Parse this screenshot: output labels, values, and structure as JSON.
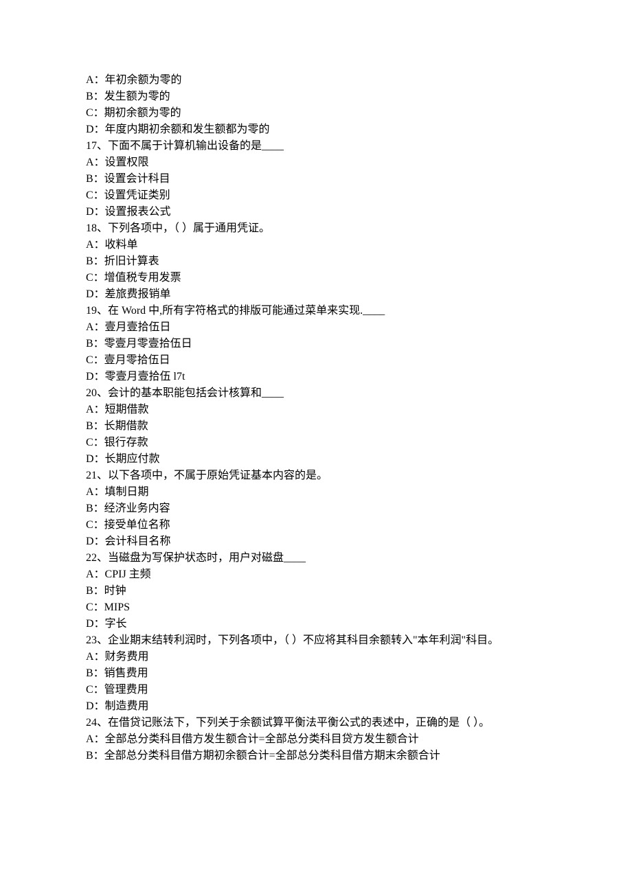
{
  "q16": {
    "A": "A：年初余额为零的",
    "B": "B：发生额为零的",
    "C": "C：期初余额为零的",
    "D": "D：年度内期初余额和发生额都为零的"
  },
  "q17": {
    "question": "17、下面不属于计算机输出设备的是____",
    "A": "A：设置权限",
    "B": "B：设置会计科目",
    "C": "C：设置凭证类别",
    "D": "D：设置报表公式"
  },
  "q18": {
    "question": "18、下列各项中，（   ）属于通用凭证。",
    "A": "A：收料单",
    "B": "B：折旧计算表",
    "C": "C：增值税专用发票",
    "D": "D：差旅费报销单"
  },
  "q19": {
    "question": "19、在 Word 中,所有字符格式的排版可能通过菜单来实现.____",
    "A": "A：壹月壹拾伍日",
    "B": "B：零壹月零壹拾伍日",
    "C": "C：壹月零拾伍日",
    "D": "D：零壹月壹拾伍 l7t"
  },
  "q20": {
    "question": "20、会计的基本职能包括会计核算和____",
    "A": "A：短期借款",
    "B": "B：长期借款",
    "C": "C：银行存款",
    "D": "D：长期应付款"
  },
  "q21": {
    "question": "21、以下各项中，不属于原始凭证基本内容的是。",
    "A": "A：填制日期",
    "B": "B：经济业务内容",
    "C": "C：接受单位名称",
    "D": "D：会计科目名称"
  },
  "q22": {
    "question": "22、当磁盘为写保护状态时，用户对磁盘____",
    "A": "A：CPIJ 主频",
    "B": "B：时钟",
    "C": "C：MIPS",
    "D": "D：字长"
  },
  "q23": {
    "question": "23、企业期末结转利润时，下列各项中，（   ）不应将其科目余额转入\"本年利润\"科目。",
    "A": "A：财务费用",
    "B": "B：销售费用",
    "C": "C：管理费用",
    "D": "D：制造费用"
  },
  "q24": {
    "question": "24、在借贷记账法下，下列关于余额试算平衡法平衡公式的表述中，正确的是（   ）。",
    "A": "A：全部总分类科目借方发生额合计=全部总分类科目贷方发生额合计",
    "B": "B：全部总分类科目借方期初余额合计=全部总分类科目借方期末余额合计"
  }
}
